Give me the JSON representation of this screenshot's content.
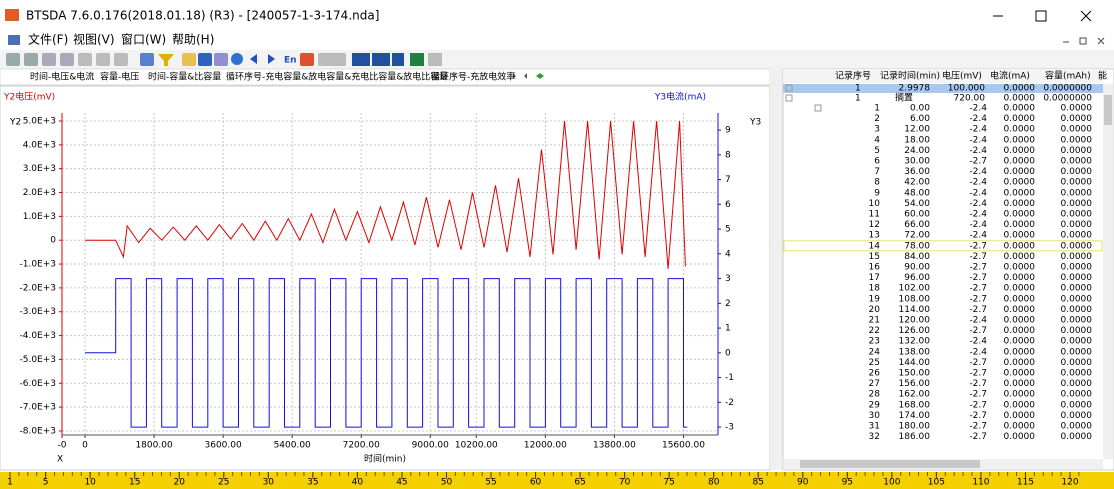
{
  "window": {
    "title": "BTSDA 7.6.0.176(2018.01.18) (R3) - [240057-1-3-174.nda]"
  },
  "menu": [
    "文件(F)",
    "视图(V)",
    "窗口(W)",
    "帮助(H)"
  ],
  "toolbar": {
    "label": "En"
  },
  "tabs": [
    "时间-电压&电流",
    "容量-电压",
    "时间-容量&比容量",
    "循环序号-充电容量&放电容量&充电比容量&放电比容量",
    "循环序号-充放电效率"
  ],
  "chart_data": {
    "type": "line",
    "y_label": "Y2电压(mV)",
    "y2_label": "Y3电流(mA)",
    "y_axis_name": "Y2",
    "y2_axis_name": "Y3",
    "x_axis_name": "X",
    "x_label": "时间(min)",
    "grid": true,
    "xlim": [
      -600,
      16500
    ],
    "xticks": [
      {
        "value": -600,
        "label": "-0"
      },
      0,
      {
        "value": 1800,
        "label": "1800.00"
      },
      {
        "value": 3600,
        "label": "3600.00"
      },
      {
        "value": 5400,
        "label": "5400.00"
      },
      {
        "value": 7200,
        "label": "7200.00"
      },
      {
        "value": 9000,
        "label": "9000.00"
      },
      {
        "value": 10200,
        "label": "10200.00"
      },
      {
        "value": 12000,
        "label": "12000.00"
      },
      {
        "value": 13800,
        "label": "13800.00"
      },
      {
        "value": 15600,
        "label": "15600.00"
      }
    ],
    "ylim": [
      -8170,
      5335
    ],
    "yticks": [
      {
        "value": 5000,
        "label": "5.0E+3"
      },
      {
        "value": 4000,
        "label": "4.0E+3"
      },
      {
        "value": 3000,
        "label": "3.0E+3"
      },
      {
        "value": 2000,
        "label": "2.0E+3"
      },
      {
        "value": 1000,
        "label": "1.0E+3"
      },
      0,
      {
        "value": -1000,
        "label": "-1.0E+3"
      },
      {
        "value": -2000,
        "label": "-2.0E+3"
      },
      {
        "value": -3000,
        "label": "-3.0E+3"
      },
      {
        "value": -4000,
        "label": "-4.0E+3"
      },
      {
        "value": -5000,
        "label": "-5.0E+3"
      },
      {
        "value": -6000,
        "label": "-6.0E+3"
      },
      {
        "value": -7000,
        "label": "-7.0E+3"
      },
      {
        "value": -8000,
        "label": "-8.0E+3"
      }
    ],
    "y2lim": [
      -3.32,
      9.69
    ],
    "y2ticks": [
      9,
      8,
      7,
      6,
      5,
      4,
      3,
      2,
      1,
      0,
      -1,
      -2,
      -3
    ],
    "series": [
      {
        "name": "电压",
        "color": "#e00000",
        "x": [
          0,
          800,
          1000,
          1100,
          1400,
          1700,
          2000,
          2300,
          2600,
          2900,
          3200,
          3500,
          3800,
          4100,
          4400,
          4700,
          5000,
          5300,
          5600,
          5900,
          6200,
          6500,
          6800,
          7100,
          7400,
          7700,
          8000,
          8300,
          8600,
          8900,
          9200,
          9500,
          9800,
          10100,
          10400,
          10700,
          11000,
          11300,
          11600,
          11900,
          12200,
          12500,
          12800,
          13100,
          13400,
          13700,
          14000,
          14300,
          14600,
          14900,
          15200,
          15500,
          15650
        ],
        "values": [
          0,
          0,
          -700,
          600,
          -100,
          500,
          0,
          550,
          0,
          600,
          0,
          650,
          50,
          700,
          0,
          800,
          0,
          900,
          0,
          1100,
          -100,
          1300,
          0,
          1200,
          -100,
          1400,
          0,
          1600,
          -200,
          1800,
          -300,
          1700,
          -400,
          2000,
          -300,
          2300,
          -500,
          2600,
          -700,
          3800,
          -600,
          5000,
          -400,
          5000,
          -800,
          5000,
          -600,
          5000,
          -700,
          5000,
          -1200,
          5000,
          -1100
        ]
      },
      {
        "name": "电流",
        "color": "#1010e0",
        "axis": "y2",
        "x": [
          0,
          800,
          800,
          1200,
          1200,
          1600,
          1600,
          2000,
          2000,
          2400,
          2400,
          2800,
          2800,
          3200,
          3200,
          3600,
          3600,
          4000,
          4000,
          4400,
          4400,
          4800,
          4800,
          5200,
          5200,
          5600,
          5600,
          6000,
          6000,
          6400,
          6400,
          6800,
          6800,
          7200,
          7200,
          7600,
          7600,
          8000,
          8000,
          8400,
          8400,
          8800,
          8800,
          9200,
          9200,
          9600,
          9600,
          10000,
          10000,
          10400,
          10400,
          10800,
          10800,
          11200,
          11200,
          11600,
          11600,
          12000,
          12000,
          12400,
          12400,
          12800,
          12800,
          13200,
          13200,
          13600,
          13600,
          14000,
          14000,
          14400,
          14400,
          14800,
          14800,
          15200,
          15200,
          15600,
          15600,
          15700
        ],
        "values": [
          0,
          0,
          3,
          3,
          -3,
          -3,
          3,
          3,
          -3,
          -3,
          3,
          3,
          -3,
          -3,
          3,
          3,
          -3,
          -3,
          3,
          3,
          -3,
          -3,
          3,
          3,
          -3,
          -3,
          3,
          3,
          -3,
          -3,
          3,
          3,
          -3,
          -3,
          3,
          3,
          -3,
          -3,
          3,
          3,
          -3,
          -3,
          3,
          3,
          -3,
          -3,
          3,
          3,
          -3,
          -3,
          3,
          3,
          -3,
          -3,
          3,
          3,
          -3,
          -3,
          3,
          3,
          -3,
          -3,
          3,
          3,
          -3,
          -3,
          3,
          3,
          -3,
          -3,
          3,
          3,
          -3,
          -3,
          3,
          3,
          -3,
          -3
        ]
      }
    ]
  },
  "table": {
    "headers": [
      "记录序号",
      "记录时间(min)",
      "电压(mV)",
      "电流(mA)",
      "容量(mAh)",
      "能"
    ],
    "summary_rows": [
      [
        "1",
        "2.9978",
        "100.000",
        "0.0000",
        "0.0000000"
      ],
      [
        "1",
        "搁置",
        "720.00",
        "0.0000",
        "0.0000000"
      ]
    ],
    "rows": [
      [
        "1",
        "0.00",
        "-2.4",
        "0.0000",
        "0.0000"
      ],
      [
        "2",
        "6.00",
        "-2.4",
        "0.0000",
        "0.0000"
      ],
      [
        "3",
        "12.00",
        "-2.4",
        "0.0000",
        "0.0000"
      ],
      [
        "4",
        "18.00",
        "-2.4",
        "0.0000",
        "0.0000"
      ],
      [
        "5",
        "24.00",
        "-2.4",
        "0.0000",
        "0.0000"
      ],
      [
        "6",
        "30.00",
        "-2.7",
        "0.0000",
        "0.0000"
      ],
      [
        "7",
        "36.00",
        "-2.4",
        "0.0000",
        "0.0000"
      ],
      [
        "8",
        "42.00",
        "-2.4",
        "0.0000",
        "0.0000"
      ],
      [
        "9",
        "48.00",
        "-2.4",
        "0.0000",
        "0.0000"
      ],
      [
        "10",
        "54.00",
        "-2.4",
        "0.0000",
        "0.0000"
      ],
      [
        "11",
        "60.00",
        "-2.4",
        "0.0000",
        "0.0000"
      ],
      [
        "12",
        "66.00",
        "-2.4",
        "0.0000",
        "0.0000"
      ],
      [
        "13",
        "72.00",
        "-2.4",
        "0.0000",
        "0.0000"
      ],
      [
        "14",
        "78.00",
        "-2.7",
        "0.0000",
        "0.0000"
      ],
      [
        "15",
        "84.00",
        "-2.7",
        "0.0000",
        "0.0000"
      ],
      [
        "16",
        "90.00",
        "-2.7",
        "0.0000",
        "0.0000"
      ],
      [
        "17",
        "96.00",
        "-2.7",
        "0.0000",
        "0.0000"
      ],
      [
        "18",
        "102.00",
        "-2.7",
        "0.0000",
        "0.0000"
      ],
      [
        "19",
        "108.00",
        "-2.7",
        "0.0000",
        "0.0000"
      ],
      [
        "20",
        "114.00",
        "-2.7",
        "0.0000",
        "0.0000"
      ],
      [
        "21",
        "120.00",
        "-2.4",
        "0.0000",
        "0.0000"
      ],
      [
        "22",
        "126.00",
        "-2.7",
        "0.0000",
        "0.0000"
      ],
      [
        "23",
        "132.00",
        "-2.4",
        "0.0000",
        "0.0000"
      ],
      [
        "24",
        "138.00",
        "-2.4",
        "0.0000",
        "0.0000"
      ],
      [
        "25",
        "144.00",
        "-2.7",
        "0.0000",
        "0.0000"
      ],
      [
        "26",
        "150.00",
        "-2.7",
        "0.0000",
        "0.0000"
      ],
      [
        "27",
        "156.00",
        "-2.7",
        "0.0000",
        "0.0000"
      ],
      [
        "28",
        "162.00",
        "-2.7",
        "0.0000",
        "0.0000"
      ],
      [
        "29",
        "168.00",
        "-2.7",
        "0.0000",
        "0.0000"
      ],
      [
        "30",
        "174.00",
        "-2.7",
        "0.0000",
        "0.0000"
      ],
      [
        "31",
        "180.00",
        "-2.7",
        "0.0000",
        "0.0000"
      ],
      [
        "32",
        "186.00",
        "-2.7",
        "0.0000",
        "0.0000"
      ]
    ]
  },
  "ruler": [
    1,
    5,
    10,
    15,
    20,
    25,
    30,
    35,
    40,
    45,
    50,
    55,
    60,
    65,
    70,
    75,
    80,
    85,
    90,
    95,
    100,
    105,
    110,
    115,
    120
  ]
}
